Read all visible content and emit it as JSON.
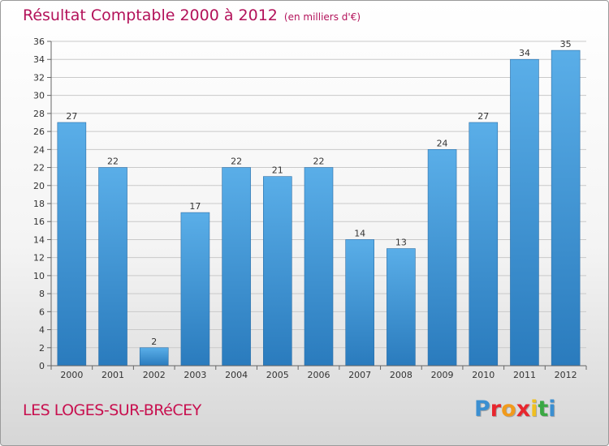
{
  "header": {
    "title": "Résultat Comptable 2000 à 2012",
    "subtitle": "(en milliers d'€)"
  },
  "footer": {
    "commune": "LES LOGES-SUR-BRéCEY",
    "brand_letters": [
      "P",
      "r",
      "o",
      "x",
      "i",
      "t",
      "i"
    ],
    "brand_colors": [
      "#3b8fd1",
      "#e8262e",
      "#f19a1b",
      "#e8262e",
      "#f0c020",
      "#3aa843",
      "#3b8fd1"
    ]
  },
  "colors": {
    "bar_light": "#5aaee8",
    "bar_dark": "#2a7bbd",
    "grid": "#c9c9c9",
    "axis": "#666666",
    "text": "#333333"
  },
  "chart_data": {
    "type": "bar",
    "title": "Résultat Comptable 2000 à 2012",
    "subtitle": "(en milliers d'€)",
    "categories": [
      "2000",
      "2001",
      "2002",
      "2003",
      "2004",
      "2005",
      "2006",
      "2007",
      "2008",
      "2009",
      "2010",
      "2011",
      "2012"
    ],
    "values": [
      27,
      22,
      2,
      17,
      22,
      21,
      22,
      14,
      13,
      24,
      27,
      34,
      35
    ],
    "ylim": [
      0,
      36
    ],
    "yticks": [
      0,
      2,
      4,
      6,
      8,
      10,
      12,
      14,
      16,
      18,
      20,
      22,
      24,
      26,
      28,
      30,
      32,
      34,
      36
    ],
    "grid": true,
    "data_labels": true
  }
}
